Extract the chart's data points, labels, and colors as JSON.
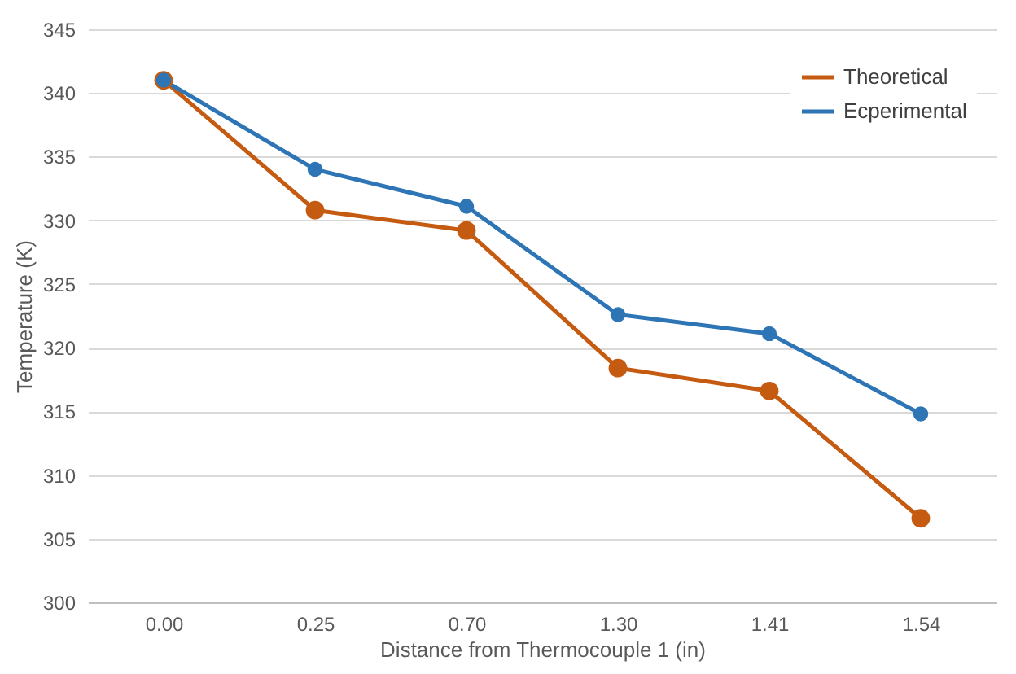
{
  "chart_data": {
    "type": "line",
    "xlabel": "Distance from Thermocouple 1 (in)",
    "ylabel": "Temperature (K)",
    "categories": [
      "0.00",
      "0.25",
      "0.70",
      "1.30",
      "1.41",
      "1.54"
    ],
    "series": [
      {
        "name": "Theoretical",
        "color": "#c55a11",
        "values": [
          341.0,
          330.8,
          329.2,
          318.4,
          316.6,
          306.6
        ]
      },
      {
        "name": "Ecperimental",
        "color": "#2e75b6",
        "values": [
          341.0,
          334.0,
          331.1,
          322.6,
          321.1,
          314.8
        ]
      }
    ],
    "ylim": [
      300,
      345
    ],
    "yticks": [
      300,
      305,
      310,
      315,
      320,
      325,
      330,
      335,
      340,
      345
    ],
    "grid": "y",
    "legend": "top right",
    "marker": "circle",
    "line_style": "solid"
  }
}
